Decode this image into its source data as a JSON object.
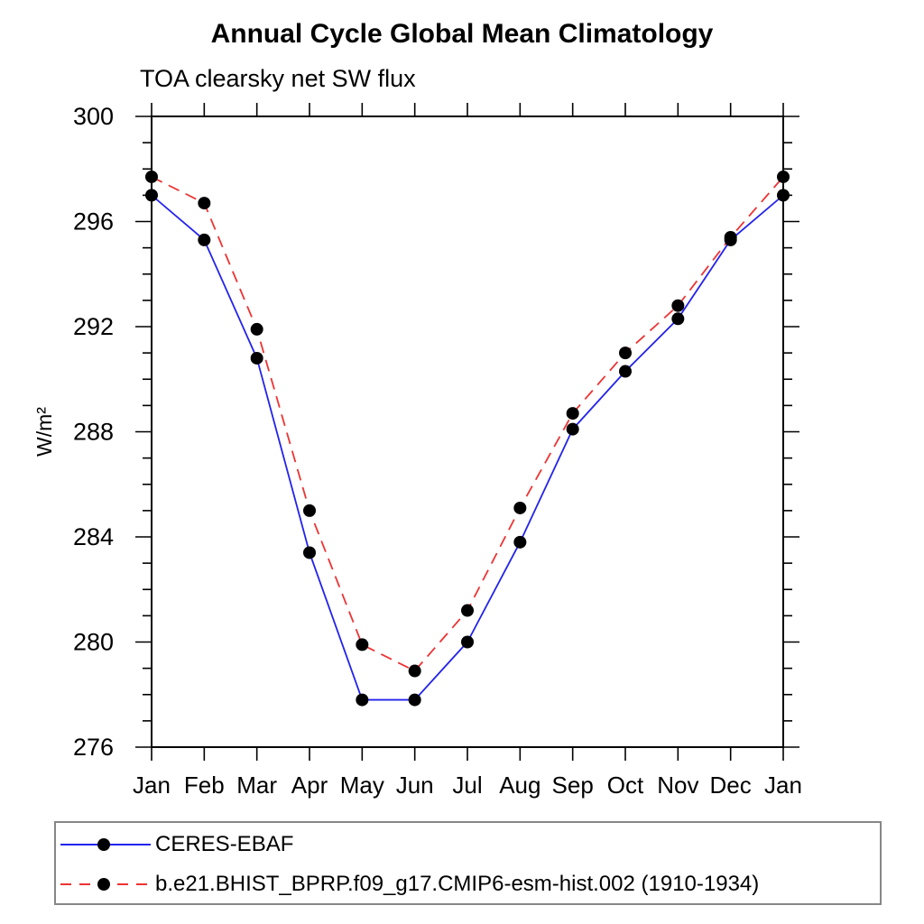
{
  "chart_data": {
    "type": "line",
    "title": "Annual Cycle Global Mean Climatology",
    "subtitle": "TOA clearsky net SW flux",
    "ylabel": "W/m²",
    "xlabel": "",
    "categories": [
      "Jan",
      "Feb",
      "Mar",
      "Apr",
      "May",
      "Jun",
      "Jul",
      "Aug",
      "Sep",
      "Oct",
      "Nov",
      "Dec",
      "Jan"
    ],
    "ylim": [
      276,
      300
    ],
    "yticks_major": [
      276,
      280,
      284,
      288,
      292,
      296,
      300
    ],
    "ytick_minor_step": 1,
    "grid": false,
    "frame": "boxed-outward-ticks",
    "legend_position": "bottom-left-box",
    "axis_color": "#000000",
    "marker": "filled-circle",
    "marker_color": "#000000",
    "series": [
      {
        "name": "CERES-EBAF",
        "color": "#2222ee",
        "style": "solid",
        "values": [
          297.0,
          295.3,
          290.8,
          283.4,
          277.8,
          277.8,
          280.0,
          283.8,
          288.1,
          290.3,
          292.3,
          295.3,
          297.0
        ]
      },
      {
        "name": "b.e21.BHIST_BPRP.f09_g17.CMIP6-esm-hist.002 (1910-1934)",
        "color": "#ee3333",
        "style": "dashed",
        "values": [
          297.7,
          296.7,
          291.9,
          285.0,
          279.9,
          278.9,
          281.2,
          285.1,
          288.7,
          291.0,
          292.8,
          295.4,
          297.7
        ]
      }
    ]
  }
}
